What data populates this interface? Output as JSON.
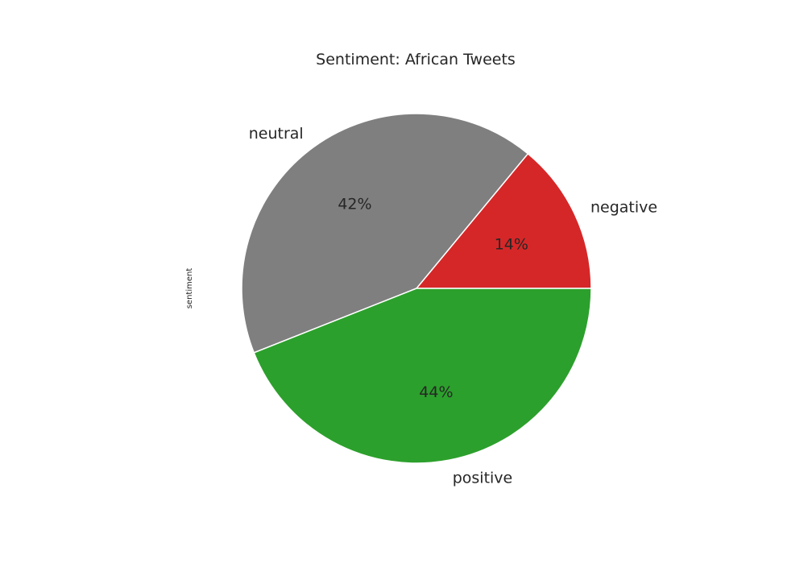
{
  "chart_data": {
    "type": "pie",
    "title": "Sentiment: African Tweets",
    "ylabel": "sentiment",
    "categories": [
      "negative",
      "neutral",
      "positive"
    ],
    "values": [
      14,
      42,
      44
    ],
    "labels": [
      "14%",
      "42%",
      "44%"
    ],
    "colors": [
      "#d62728",
      "#7f7f7f",
      "#2ca02c"
    ],
    "start_angle_deg": 0,
    "direction": "counterclockwise"
  }
}
